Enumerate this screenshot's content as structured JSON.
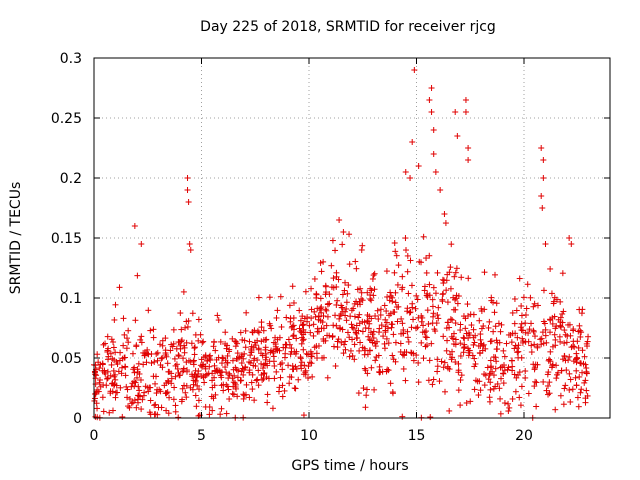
{
  "chart_data": {
    "type": "scatter",
    "title": "Day 225 of 2018, SRMTID for receiver rjcg",
    "xlabel": "GPS time / hours",
    "ylabel": "SRMTID / TECUs",
    "xlim": [
      0,
      24
    ],
    "ylim": [
      0,
      0.3
    ],
    "x_ticks": [
      0,
      5,
      10,
      15,
      20
    ],
    "x_tick_labels": [
      "0",
      "5",
      "10",
      "15",
      "20"
    ],
    "y_ticks": [
      0,
      0.05,
      0.1,
      0.15,
      0.2,
      0.25,
      0.3
    ],
    "y_tick_labels": [
      "0",
      "0.05",
      "0.1",
      "0.15",
      "0.2",
      "0.25",
      "0.3"
    ],
    "grid": true,
    "marker": "+",
    "color": "#e00000",
    "series": [
      {
        "name": "SRMTID",
        "profile": [
          {
            "x": 0.0,
            "mean": 0.03,
            "spread": 0.025
          },
          {
            "x": 1.0,
            "mean": 0.04,
            "spread": 0.03
          },
          {
            "x": 2.0,
            "mean": 0.04,
            "spread": 0.03
          },
          {
            "x": 3.0,
            "mean": 0.035,
            "spread": 0.028
          },
          {
            "x": 4.0,
            "mean": 0.045,
            "spread": 0.03
          },
          {
            "x": 5.0,
            "mean": 0.04,
            "spread": 0.025
          },
          {
            "x": 6.0,
            "mean": 0.04,
            "spread": 0.025
          },
          {
            "x": 7.0,
            "mean": 0.045,
            "spread": 0.025
          },
          {
            "x": 8.0,
            "mean": 0.05,
            "spread": 0.025
          },
          {
            "x": 9.0,
            "mean": 0.055,
            "spread": 0.025
          },
          {
            "x": 10.0,
            "mean": 0.065,
            "spread": 0.025
          },
          {
            "x": 11.0,
            "mean": 0.09,
            "spread": 0.03
          },
          {
            "x": 12.0,
            "mean": 0.08,
            "spread": 0.035
          },
          {
            "x": 13.0,
            "mean": 0.07,
            "spread": 0.035
          },
          {
            "x": 14.0,
            "mean": 0.075,
            "spread": 0.04
          },
          {
            "x": 15.0,
            "mean": 0.08,
            "spread": 0.045
          },
          {
            "x": 16.0,
            "mean": 0.085,
            "spread": 0.05
          },
          {
            "x": 17.0,
            "mean": 0.07,
            "spread": 0.04
          },
          {
            "x": 18.0,
            "mean": 0.06,
            "spread": 0.035
          },
          {
            "x": 19.0,
            "mean": 0.055,
            "spread": 0.03
          },
          {
            "x": 20.0,
            "mean": 0.06,
            "spread": 0.035
          },
          {
            "x": 21.0,
            "mean": 0.065,
            "spread": 0.035
          },
          {
            "x": 22.0,
            "mean": 0.055,
            "spread": 0.03
          },
          {
            "x": 23.0,
            "mean": 0.04,
            "spread": 0.03
          }
        ],
        "x_range": [
          0.0,
          23.0
        ],
        "n_points": 1400,
        "seed": 225,
        "outliers": [
          {
            "x": 1.9,
            "y": 0.16
          },
          {
            "x": 2.2,
            "y": 0.145
          },
          {
            "x": 4.35,
            "y": 0.2
          },
          {
            "x": 4.35,
            "y": 0.19
          },
          {
            "x": 4.4,
            "y": 0.18
          },
          {
            "x": 4.45,
            "y": 0.145
          },
          {
            "x": 4.5,
            "y": 0.14
          },
          {
            "x": 11.4,
            "y": 0.165
          },
          {
            "x": 11.6,
            "y": 0.155
          },
          {
            "x": 14.5,
            "y": 0.205
          },
          {
            "x": 14.7,
            "y": 0.2
          },
          {
            "x": 14.8,
            "y": 0.23
          },
          {
            "x": 14.9,
            "y": 0.29
          },
          {
            "x": 15.1,
            "y": 0.21
          },
          {
            "x": 15.6,
            "y": 0.265
          },
          {
            "x": 15.7,
            "y": 0.255
          },
          {
            "x": 15.7,
            "y": 0.275
          },
          {
            "x": 15.8,
            "y": 0.24
          },
          {
            "x": 15.8,
            "y": 0.22
          },
          {
            "x": 15.9,
            "y": 0.205
          },
          {
            "x": 16.1,
            "y": 0.19
          },
          {
            "x": 16.3,
            "y": 0.17
          },
          {
            "x": 16.8,
            "y": 0.255
          },
          {
            "x": 16.9,
            "y": 0.235
          },
          {
            "x": 17.3,
            "y": 0.265
          },
          {
            "x": 17.3,
            "y": 0.255
          },
          {
            "x": 17.4,
            "y": 0.225
          },
          {
            "x": 17.4,
            "y": 0.215
          },
          {
            "x": 20.8,
            "y": 0.225
          },
          {
            "x": 20.9,
            "y": 0.215
          },
          {
            "x": 20.9,
            "y": 0.2
          },
          {
            "x": 20.8,
            "y": 0.185
          },
          {
            "x": 20.85,
            "y": 0.175
          },
          {
            "x": 21.0,
            "y": 0.145
          },
          {
            "x": 22.1,
            "y": 0.15
          },
          {
            "x": 22.2,
            "y": 0.145
          }
        ]
      }
    ]
  }
}
